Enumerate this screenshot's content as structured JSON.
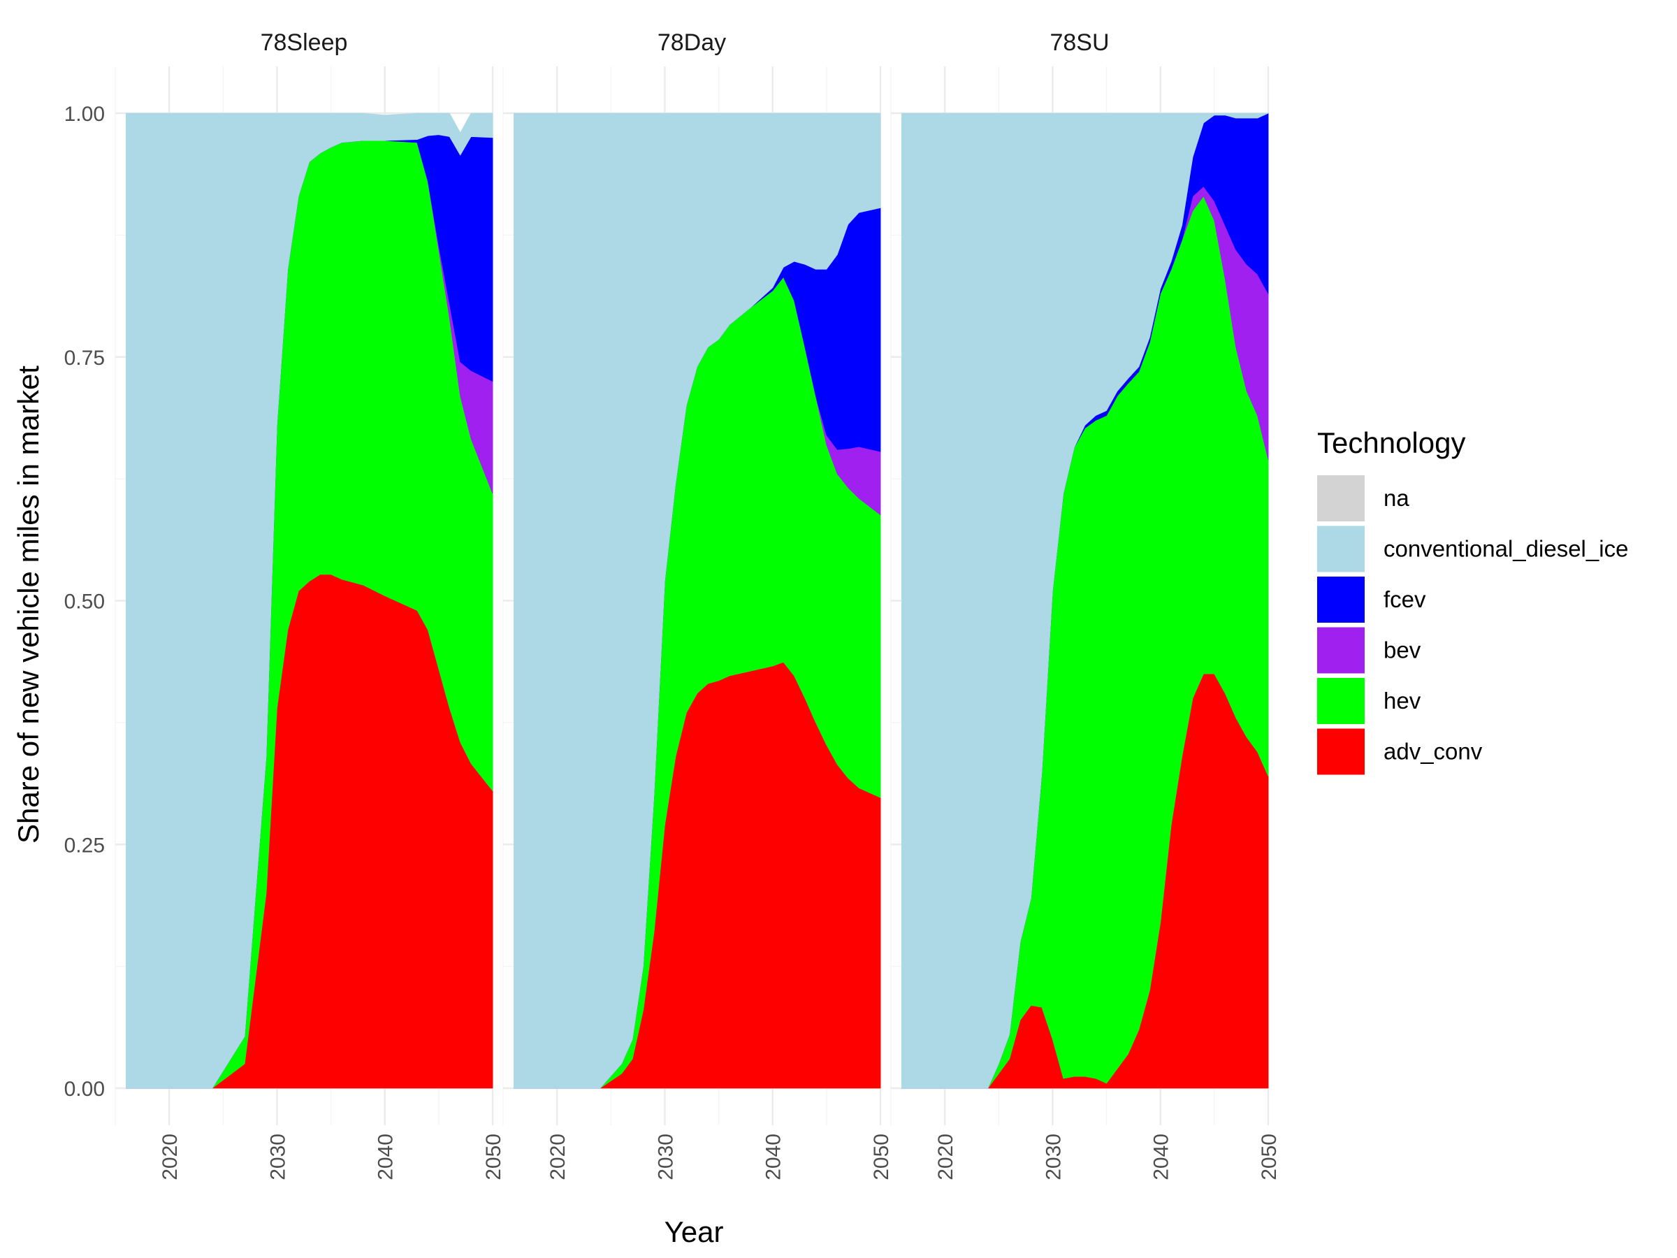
{
  "chart_data": {
    "type": "area",
    "stacked": true,
    "ylabel": "Share of new vehicle miles in market",
    "xlabel": "Year",
    "ylim": [
      0,
      1
    ],
    "xlim": [
      2015,
      2050
    ],
    "x_ticks": [
      2020,
      2030,
      2040,
      2050
    ],
    "y_ticks": [
      0,
      0.25,
      0.5,
      0.75,
      1
    ],
    "y_tick_labels": [
      "0.00",
      "0.25",
      "0.50",
      "0.75",
      "1.00"
    ],
    "legend": {
      "title": "Technology",
      "position": "right",
      "entries": [
        {
          "name": "na",
          "color": "#d3d3d3"
        },
        {
          "name": "conventional_diesel_ice",
          "color": "#add8e6"
        },
        {
          "name": "fcev",
          "color": "#0000ff"
        },
        {
          "name": "bev",
          "color": "#a020f0"
        },
        {
          "name": "hev",
          "color": "#00ff00"
        },
        {
          "name": "adv_conv",
          "color": "#ff0000"
        }
      ]
    },
    "stack_order_bottom_to_top": [
      "adv_conv",
      "hev",
      "bev",
      "fcev",
      "conventional_diesel_ice",
      "na"
    ],
    "panels": [
      {
        "title": "78Sleep",
        "years": [
          2016,
          2024,
          2027,
          2029,
          2030,
          2031,
          2032,
          2033,
          2034,
          2035,
          2036,
          2038,
          2040,
          2043,
          2044,
          2045,
          2046,
          2047,
          2048,
          2050
        ],
        "series": [
          {
            "name": "adv_conv",
            "values": [
              0,
              0,
              0.025,
              0.2,
              0.39,
              0.47,
              0.51,
              0.52,
              0.527,
              0.527,
              0.522,
              0.516,
              0.505,
              0.49,
              0.47,
              0.43,
              0.39,
              0.355,
              0.333,
              0.305
            ]
          },
          {
            "name": "hev",
            "values": [
              0,
              0,
              0.028,
              0.14,
              0.29,
              0.37,
              0.405,
              0.43,
              0.432,
              0.438,
              0.448,
              0.456,
              0.467,
              0.48,
              0.46,
              0.43,
              0.4,
              0.355,
              0.333,
              0.305
            ]
          },
          {
            "name": "bev",
            "values": [
              0,
              0,
              0,
              0,
              0,
              0,
              0,
              0,
              0,
              0,
              0,
              0,
              0,
              0,
              0,
              0.005,
              0.015,
              0.035,
              0.07,
              0.115
            ]
          },
          {
            "name": "fcev",
            "values": [
              0,
              0,
              0,
              0,
              0,
              0,
              0,
              0,
              0,
              0,
              0,
              0,
              0,
              0.003,
              0.047,
              0.113,
              0.171,
              0.212,
              0.24,
              0.25
            ]
          },
          {
            "name": "conventional_diesel_ice",
            "values": [
              1,
              1,
              0.947,
              0.66,
              0.32,
              0.16,
              0.085,
              0.05,
              0.041,
              0.035,
              0.03,
              0.028,
              0.026,
              0.027,
              0.023,
              0.022,
              0.024,
              0.023,
              0.024,
              0.025
            ]
          },
          {
            "name": "na",
            "values": [
              0,
              0,
              0,
              0,
              0,
              0,
              0,
              0,
              0,
              0,
              0,
              0,
              0,
              0,
              0,
              0,
              0,
              0,
              0,
              0
            ]
          }
        ]
      },
      {
        "title": "78Day",
        "years": [
          2016,
          2024,
          2026,
          2027,
          2028,
          2029,
          2030,
          2031,
          2032,
          2033,
          2034,
          2035,
          2036,
          2038,
          2040,
          2041,
          2042,
          2043,
          2044,
          2045,
          2046,
          2047,
          2048,
          2050
        ],
        "series": [
          {
            "name": "adv_conv",
            "values": [
              0,
              0,
              0.015,
              0.03,
              0.08,
              0.16,
              0.27,
              0.34,
              0.385,
              0.405,
              0.415,
              0.418,
              0.423,
              0.428,
              0.433,
              0.437,
              0.423,
              0.4,
              0.375,
              0.352,
              0.332,
              0.318,
              0.308,
              0.298
            ]
          },
          {
            "name": "hev",
            "values": [
              0,
              0,
              0.01,
              0.02,
              0.045,
              0.14,
              0.25,
              0.28,
              0.315,
              0.335,
              0.345,
              0.35,
              0.36,
              0.373,
              0.385,
              0.395,
              0.385,
              0.36,
              0.335,
              0.308,
              0.298,
              0.298,
              0.297,
              0.29
            ]
          },
          {
            "name": "bev",
            "values": [
              0,
              0,
              0,
              0,
              0,
              0,
              0,
              0,
              0,
              0,
              0,
              0,
              0,
              0,
              0,
              0,
              0,
              0,
              0,
              0.01,
              0.025,
              0.04,
              0.053,
              0.065
            ]
          },
          {
            "name": "fcev",
            "values": [
              0,
              0,
              0,
              0,
              0,
              0,
              0,
              0,
              0,
              0,
              0,
              0,
              0,
              0,
              0.003,
              0.01,
              0.04,
              0.085,
              0.13,
              0.17,
              0.2,
              0.23,
              0.24,
              0.25
            ]
          },
          {
            "name": "conventional_diesel_ice",
            "values": [
              1,
              1,
              0.975,
              0.95,
              0.875,
              0.7,
              0.48,
              0.38,
              0.3,
              0.26,
              0.24,
              0.232,
              0.217,
              0.199,
              0.179,
              0.158,
              0.152,
              0.155,
              0.16,
              0.16,
              0.145,
              0.114,
              0.102,
              0.097
            ]
          },
          {
            "name": "na",
            "values": [
              0,
              0,
              0,
              0,
              0,
              0,
              0,
              0,
              0,
              0,
              0,
              0,
              0,
              0,
              0,
              0,
              0,
              0,
              0,
              0,
              0,
              0,
              0,
              0
            ]
          }
        ]
      },
      {
        "title": "78SU",
        "years": [
          2016,
          2024,
          2025,
          2026,
          2027,
          2028,
          2029,
          2030,
          2031,
          2032,
          2033,
          2034,
          2035,
          2036,
          2037,
          2038,
          2039,
          2040,
          2041,
          2042,
          2043,
          2044,
          2045,
          2046,
          2047,
          2048,
          2049,
          2050
        ],
        "series": [
          {
            "name": "adv_conv",
            "values": [
              0,
              0,
              0.015,
              0.03,
              0.07,
              0.085,
              0.083,
              0.05,
              0.01,
              0.012,
              0.012,
              0.01,
              0.005,
              0.02,
              0.035,
              0.06,
              0.1,
              0.17,
              0.27,
              0.34,
              0.4,
              0.425,
              0.425,
              0.405,
              0.38,
              0.36,
              0.345,
              0.32
            ]
          },
          {
            "name": "hev",
            "values": [
              0,
              0,
              0.01,
              0.025,
              0.08,
              0.11,
              0.24,
              0.46,
              0.6,
              0.645,
              0.665,
              0.675,
              0.685,
              0.69,
              0.688,
              0.675,
              0.665,
              0.645,
              0.57,
              0.53,
              0.5,
              0.49,
              0.465,
              0.425,
              0.38,
              0.355,
              0.345,
              0.325
            ]
          },
          {
            "name": "bev",
            "values": [
              0,
              0,
              0,
              0,
              0,
              0,
              0,
              0,
              0,
              0,
              0,
              0,
              0,
              0,
              0,
              0,
              0,
              0,
              0,
              0,
              0.015,
              0.01,
              0.02,
              0.055,
              0.1,
              0.13,
              0.145,
              0.17
            ]
          },
          {
            "name": "fcev",
            "values": [
              0,
              0,
              0,
              0,
              0,
              0,
              0,
              0,
              0,
              0,
              0.003,
              0.005,
              0.005,
              0.005,
              0.005,
              0.005,
              0.005,
              0.005,
              0.008,
              0.015,
              0.04,
              0.065,
              0.088,
              0.113,
              0.135,
              0.15,
              0.16,
              0.185
            ]
          },
          {
            "name": "conventional_diesel_ice",
            "values": [
              1,
              1,
              0.975,
              0.945,
              0.85,
              0.805,
              0.677,
              0.49,
              0.39,
              0.343,
              0.32,
              0.31,
              0.305,
              0.285,
              0.272,
              0.26,
              0.23,
              0.18,
              0.152,
              0.115,
              0.045,
              0.01,
              0.002,
              0.002,
              0.005,
              0.005,
              0.005,
              0
            ]
          },
          {
            "name": "na",
            "values": [
              0,
              0,
              0,
              0,
              0,
              0,
              0,
              0,
              0,
              0,
              0,
              0,
              0,
              0,
              0,
              0,
              0,
              0,
              0,
              0,
              0,
              0,
              0,
              0,
              0,
              0,
              0,
              0
            ]
          }
        ]
      }
    ]
  }
}
